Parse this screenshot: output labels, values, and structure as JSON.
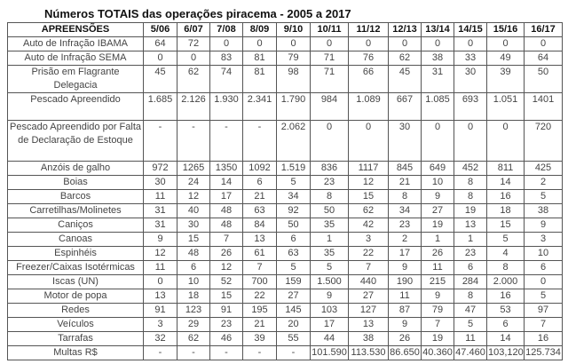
{
  "title": "Números TOTAIS das operações piracema - 2005 a 2017",
  "table": {
    "headers": [
      "APREENSÕES",
      "5/06",
      "6/07",
      "7/08",
      "8/09",
      "9/10",
      "10/11",
      "11/12",
      "12/13",
      "13/14",
      "14/15",
      "15/16",
      "16/17"
    ],
    "rows": [
      {
        "label": "Auto de Infração IBAMA",
        "values": [
          "64",
          "72",
          "0",
          "0",
          "0",
          "0",
          "0",
          "0",
          "0",
          "0",
          "0",
          "0"
        ]
      },
      {
        "label": "Auto de Infração SEMA",
        "values": [
          "0",
          "0",
          "83",
          "81",
          "79",
          "71",
          "76",
          "62",
          "38",
          "33",
          "49",
          "64"
        ]
      },
      {
        "label": "Prisão em Flagrante Delegacia",
        "values": [
          "45",
          "62",
          "74",
          "81",
          "98",
          "71",
          "66",
          "45",
          "31",
          "30",
          "39",
          "50"
        ]
      },
      {
        "label": "Pescado Apreendido",
        "values": [
          "1.685",
          "2.126",
          "1.930",
          "2.341",
          "1.790",
          "984",
          "1.089",
          "667",
          "1.085",
          "693",
          "1.051",
          "1401"
        ]
      },
      {
        "label": "Pescado Apreendido por Falta de Declaração de Estoque",
        "values": [
          "-",
          "-",
          "-",
          "-",
          "2.062",
          "0",
          "0",
          "30",
          "0",
          "0",
          "0",
          "720"
        ]
      },
      {
        "label": "Anzóis de galho",
        "values": [
          "972",
          "1265",
          "1350",
          "1092",
          "1.519",
          "836",
          "1117",
          "845",
          "649",
          "452",
          "811",
          "425"
        ]
      },
      {
        "label": "Boias",
        "values": [
          "30",
          "24",
          "14",
          "6",
          "5",
          "23",
          "12",
          "21",
          "10",
          "8",
          "14",
          "2"
        ]
      },
      {
        "label": "Barcos",
        "values": [
          "11",
          "12",
          "17",
          "21",
          "34",
          "8",
          "15",
          "8",
          "9",
          "8",
          "16",
          "5"
        ]
      },
      {
        "label": "Carretilhas/Molinetes",
        "values": [
          "31",
          "40",
          "48",
          "63",
          "92",
          "50",
          "62",
          "34",
          "27",
          "19",
          "18",
          "38"
        ]
      },
      {
        "label": "Caniços",
        "values": [
          "31",
          "30",
          "48",
          "84",
          "50",
          "35",
          "42",
          "23",
          "19",
          "13",
          "15",
          "9"
        ]
      },
      {
        "label": "Canoas",
        "values": [
          "9",
          "15",
          "7",
          "13",
          "6",
          "1",
          "3",
          "2",
          "1",
          "1",
          "5",
          "3"
        ]
      },
      {
        "label": "Espinhéis",
        "values": [
          "12",
          "48",
          "26",
          "61",
          "63",
          "35",
          "22",
          "17",
          "26",
          "23",
          "4",
          "10"
        ]
      },
      {
        "label": "Freezer/Caixas Isotérmicas",
        "values": [
          "11",
          "6",
          "12",
          "7",
          "5",
          "5",
          "7",
          "9",
          "11",
          "6",
          "8",
          "6"
        ]
      },
      {
        "label": "Iscas (UN)",
        "values": [
          "0",
          "10",
          "52",
          "700",
          "159",
          "1.500",
          "440",
          "190",
          "215",
          "284",
          "2.000",
          "0"
        ]
      },
      {
        "label": "Motor de popa",
        "values": [
          "13",
          "18",
          "15",
          "22",
          "27",
          "9",
          "27",
          "11",
          "9",
          "8",
          "16",
          "5"
        ]
      },
      {
        "label": "Redes",
        "values": [
          "91",
          "123",
          "91",
          "195",
          "145",
          "103",
          "127",
          "87",
          "79",
          "47",
          "53",
          "97"
        ]
      },
      {
        "label": "Veículos",
        "values": [
          "3",
          "29",
          "23",
          "21",
          "20",
          "17",
          "13",
          "9",
          "7",
          "5",
          "6",
          "7"
        ]
      },
      {
        "label": "Tarrafas",
        "values": [
          "32",
          "62",
          "46",
          "39",
          "55",
          "44",
          "38",
          "26",
          "19",
          "11",
          "14",
          "16"
        ]
      },
      {
        "label": "Multas R$",
        "values": [
          "-",
          "-",
          "-",
          "-",
          "-",
          "101.590",
          "113.530",
          "86.650",
          "40.360",
          "47.460",
          "103,120",
          "125.734"
        ]
      }
    ]
  }
}
